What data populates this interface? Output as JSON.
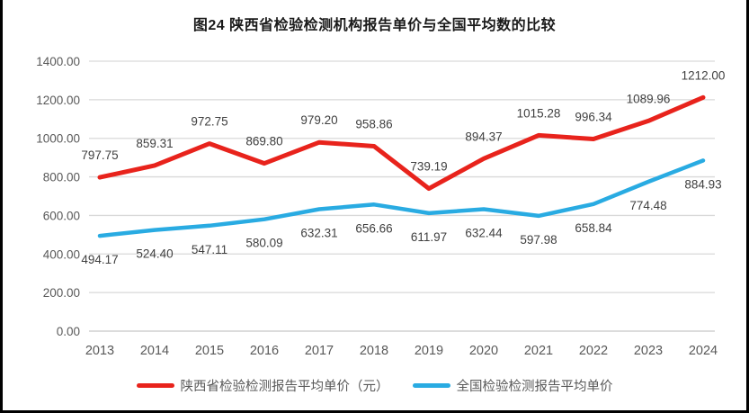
{
  "chart_data": {
    "type": "line",
    "title": "图24 陕西省检验检测机构报告单价与全国平均数的比较",
    "categories": [
      "2013",
      "2014",
      "2015",
      "2016",
      "2017",
      "2018",
      "2019",
      "2020",
      "2021",
      "2022",
      "2023",
      "2024"
    ],
    "series": [
      {
        "name": "陕西省检验检测报告平均单价（元）",
        "color": "#e8231c",
        "stroke_width": 5,
        "label_position": "above",
        "values": [
          797.75,
          859.31,
          972.75,
          869.8,
          979.2,
          958.86,
          739.19,
          894.37,
          1015.28,
          996.34,
          1089.96,
          1212.0
        ]
      },
      {
        "name": "全国检验检测报告平均单价",
        "color": "#29abe2",
        "stroke_width": 4.5,
        "label_position": "below",
        "values": [
          494.17,
          524.4,
          547.11,
          580.09,
          632.31,
          656.66,
          611.97,
          632.44,
          597.98,
          658.84,
          774.48,
          884.93
        ]
      }
    ],
    "y_ticks": [
      0,
      200,
      400,
      600,
      800,
      1000,
      1200,
      1400
    ],
    "y_tick_labels": [
      "0.00",
      "200.00",
      "400.00",
      "600.00",
      "800.00",
      "1000.00",
      "1200.00",
      "1400.00"
    ],
    "ylim": [
      0,
      1400
    ],
    "grid": "horizontal",
    "legend_position": "bottom",
    "gridline_color": "#d9d9d9",
    "axis_label_color": "#595959",
    "data_label_color": "#404040"
  }
}
